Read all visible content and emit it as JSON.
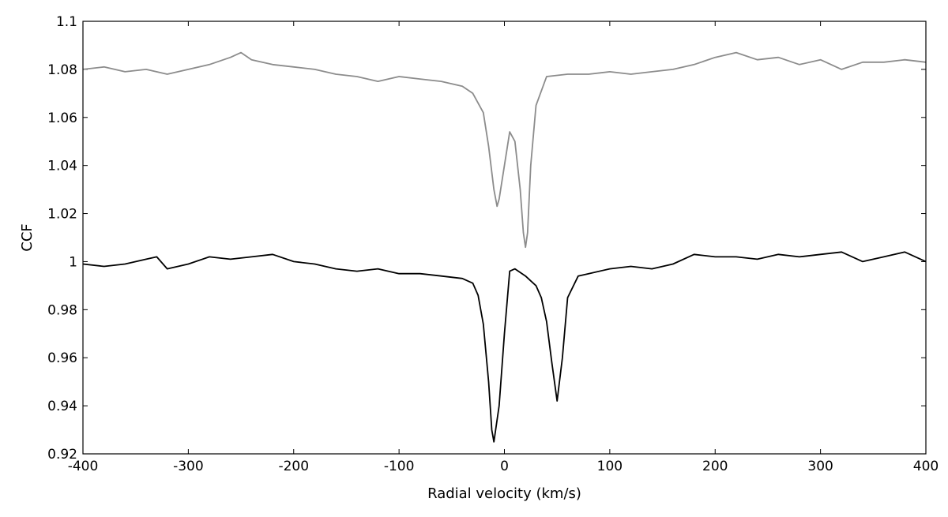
{
  "chart_data": {
    "type": "line",
    "title": "",
    "xlabel": "Radial velocity (km/s)",
    "ylabel": "CCF",
    "xlim": [
      -400,
      400
    ],
    "ylim": [
      0.92,
      1.1
    ],
    "x_ticks": [
      -400,
      -300,
      -200,
      -100,
      0,
      100,
      200,
      300,
      400
    ],
    "y_ticks": [
      0.92,
      0.94,
      0.96,
      0.98,
      1,
      1.02,
      1.04,
      1.06,
      1.08,
      1.1
    ],
    "x_tick_labels": [
      "-400",
      "-300",
      "-200",
      "-100",
      "0",
      "100",
      "200",
      "300",
      "400"
    ],
    "y_tick_labels": [
      "0.92",
      "0.94",
      "0.96",
      "0.98",
      "1",
      "1.02",
      "1.04",
      "1.06",
      "1.08",
      "1.1"
    ],
    "grid": false,
    "legend": "none",
    "series": [
      {
        "color": "#8c8c8c",
        "x": [
          -400,
          -380,
          -360,
          -340,
          -320,
          -300,
          -280,
          -260,
          -250,
          -240,
          -220,
          -200,
          -180,
          -160,
          -140,
          -120,
          -100,
          -80,
          -60,
          -40,
          -30,
          -20,
          -15,
          -10,
          -7,
          -5,
          0,
          5,
          10,
          15,
          18,
          20,
          22,
          25,
          30,
          40,
          60,
          80,
          100,
          120,
          140,
          160,
          180,
          200,
          220,
          240,
          260,
          280,
          300,
          320,
          340,
          360,
          380,
          400
        ],
        "y": [
          1.08,
          1.081,
          1.079,
          1.08,
          1.078,
          1.08,
          1.082,
          1.085,
          1.087,
          1.084,
          1.082,
          1.081,
          1.08,
          1.078,
          1.077,
          1.075,
          1.077,
          1.076,
          1.075,
          1.073,
          1.07,
          1.062,
          1.048,
          1.03,
          1.023,
          1.026,
          1.04,
          1.054,
          1.05,
          1.03,
          1.012,
          1.006,
          1.012,
          1.04,
          1.065,
          1.077,
          1.078,
          1.078,
          1.079,
          1.078,
          1.079,
          1.08,
          1.082,
          1.085,
          1.087,
          1.084,
          1.085,
          1.082,
          1.084,
          1.08,
          1.083,
          1.083,
          1.084,
          1.083
        ]
      },
      {
        "color": "#000000",
        "x": [
          -400,
          -380,
          -360,
          -340,
          -330,
          -320,
          -300,
          -280,
          -260,
          -240,
          -220,
          -200,
          -180,
          -160,
          -140,
          -120,
          -100,
          -80,
          -60,
          -40,
          -30,
          -25,
          -20,
          -15,
          -12,
          -10,
          -5,
          0,
          5,
          10,
          20,
          25,
          30,
          35,
          40,
          45,
          50,
          55,
          60,
          70,
          80,
          100,
          120,
          140,
          160,
          180,
          200,
          220,
          240,
          260,
          280,
          300,
          320,
          340,
          360,
          380,
          400
        ],
        "y": [
          0.999,
          0.998,
          0.999,
          1.001,
          1.002,
          0.997,
          0.999,
          1.002,
          1.001,
          1.002,
          1.003,
          1.0,
          0.999,
          0.997,
          0.996,
          0.997,
          0.995,
          0.995,
          0.994,
          0.993,
          0.991,
          0.986,
          0.974,
          0.95,
          0.93,
          0.925,
          0.94,
          0.97,
          0.996,
          0.997,
          0.994,
          0.992,
          0.99,
          0.985,
          0.975,
          0.958,
          0.942,
          0.96,
          0.985,
          0.994,
          0.995,
          0.997,
          0.998,
          0.997,
          0.999,
          1.003,
          1.002,
          1.002,
          1.001,
          1.003,
          1.002,
          1.003,
          1.004,
          1.0,
          1.002,
          1.004,
          1.0
        ]
      }
    ]
  }
}
